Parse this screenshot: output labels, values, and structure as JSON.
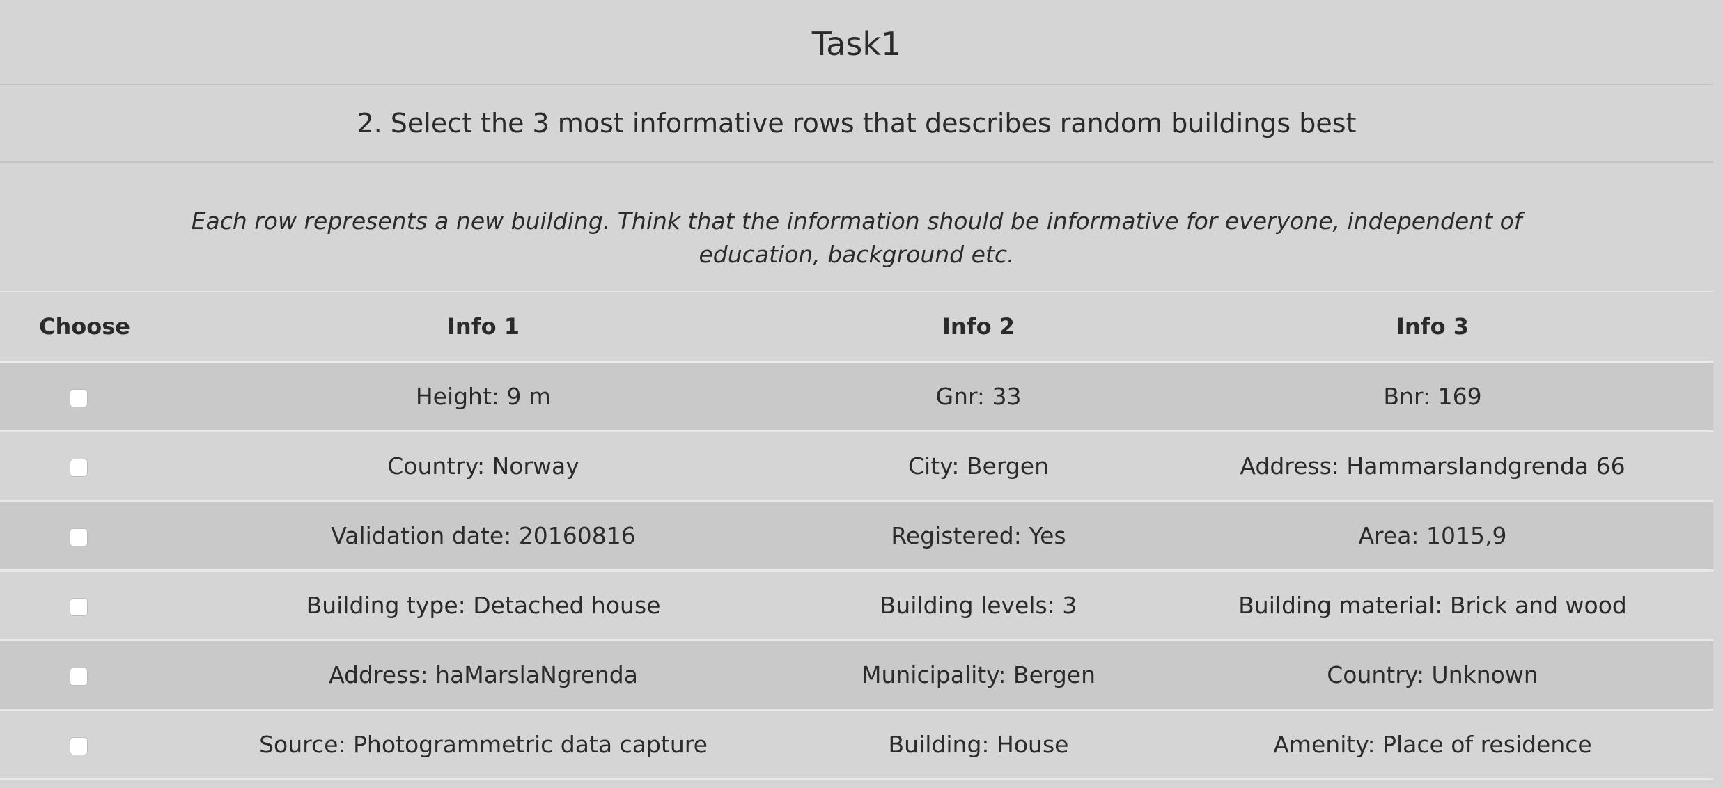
{
  "page": {
    "title": "Task1",
    "question": "2. Select the 3 most informative rows that describes random buildings best",
    "instructions": "Each row represents a new building. Think that the information should be informative for everyone, independent of education, background etc."
  },
  "table": {
    "headers": [
      "Choose",
      "Info 1",
      "Info 2",
      "Info 3"
    ],
    "rows": [
      {
        "checked": false,
        "info1": "Height: 9 m",
        "info2": "Gnr: 33",
        "info3": "Bnr: 169"
      },
      {
        "checked": false,
        "info1": "Country: Norway",
        "info2": "City: Bergen",
        "info3": "Address: Hammarslandgrenda 66"
      },
      {
        "checked": false,
        "info1": "Validation date: 20160816",
        "info2": "Registered: Yes",
        "info3": "Area: 1015,9"
      },
      {
        "checked": false,
        "info1": "Building type: Detached house",
        "info2": "Building levels: 3",
        "info3": "Building material: Brick and wood"
      },
      {
        "checked": false,
        "info1": "Address: haMarslaNgrenda",
        "info2": "Municipality: Bergen",
        "info3": "Country: Unknown"
      },
      {
        "checked": false,
        "info1": "Source: Photogrammetric data capture",
        "info2": "Building: House",
        "info3": "Amenity: Place of residence"
      }
    ]
  }
}
